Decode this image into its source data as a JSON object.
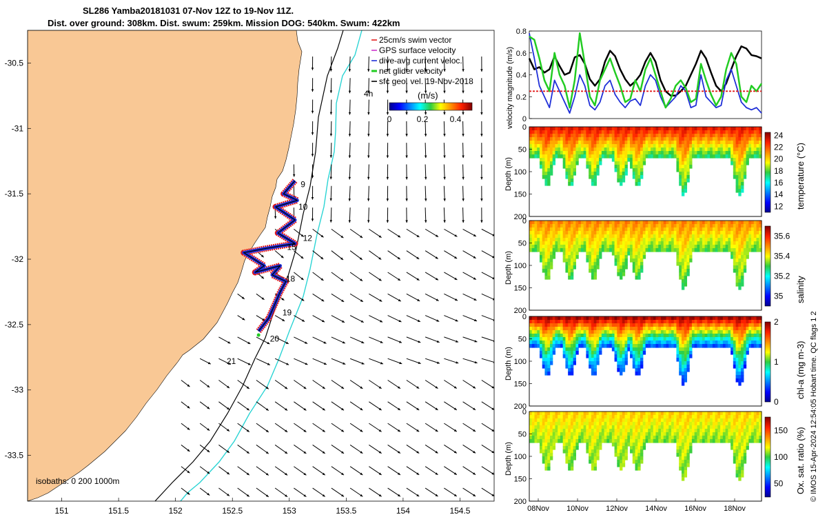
{
  "title": {
    "line1": "SL286 Yamba20181031 07-Nov 12Z to 19-Nov 11Z.",
    "line2": "Dist. over ground: 308km. Dist. swum: 259km. Mission DOG: 540km. Swum: 422km"
  },
  "credit": "© IMOS 15-Apr-2024 12:54:05 Hobart time. QC flags 1  2",
  "chart_data": [
    {
      "type": "map",
      "map": {
        "xticks": [
          "151",
          "151.5",
          "152",
          "152.5",
          "153",
          "153.5",
          "154",
          "154.5"
        ],
        "xlim": [
          150.7,
          154.8
        ],
        "yticks": [
          "-30.5",
          "-31",
          "-31.5",
          "-32",
          "-32.5",
          "-33",
          "-33.5"
        ],
        "ylim": [
          -33.85,
          -30.25
        ],
        "isobaths_label": "isobaths: 0   200  1000m",
        "elapsed_label": "4h",
        "day_labels": [
          {
            "text": "9",
            "lon": 153.1,
            "lat": -31.45
          },
          {
            "text": "10",
            "lon": 153.08,
            "lat": -31.62
          },
          {
            "text": "12",
            "lon": 153.12,
            "lat": -31.86
          },
          {
            "text": "15",
            "lon": 152.98,
            "lat": -31.93
          },
          {
            "text": "18",
            "lon": 152.97,
            "lat": -32.17
          },
          {
            "text": "19",
            "lon": 152.94,
            "lat": -32.43
          },
          {
            "text": "20",
            "lon": 152.83,
            "lat": -32.63
          },
          {
            "text": "21",
            "lon": 152.45,
            "lat": -32.8
          }
        ],
        "legend": [
          "25cm/s swim vector",
          "GPS surface velocity",
          "dive-avg current veloc.",
          "net glider velocity",
          "sfc geo. vel. 19-Nov-2018"
        ],
        "legend_colors": [
          "#e21a1a",
          "#cc33cc",
          "#1f2fd8",
          "#22cc22",
          "#000000"
        ],
        "colorbar": {
          "label": "(m/s)",
          "ticks": [
            "0",
            "0.2",
            "0.4"
          ],
          "range": [
            0,
            0.5
          ]
        }
      }
    },
    {
      "type": "line",
      "ylabel": "velocity magnitude (m/s)",
      "yticks": [
        "0",
        "0.2",
        "0.4",
        "0.6",
        "0.8"
      ],
      "ylim": [
        0,
        0.8
      ],
      "xlim": [
        0,
        12
      ],
      "series": [
        {
          "color": "#000000",
          "values": [
            0.55,
            0.45,
            0.47,
            0.42,
            0.45,
            0.57,
            0.48,
            0.4,
            0.42,
            0.56,
            0.58,
            0.5,
            0.36,
            0.3,
            0.36,
            0.52,
            0.62,
            0.57,
            0.45,
            0.36,
            0.3,
            0.34,
            0.4,
            0.52,
            0.6,
            0.52,
            0.35,
            0.25,
            0.21,
            0.21,
            0.25,
            0.3,
            0.4,
            0.5,
            0.62,
            0.55,
            0.42,
            0.3,
            0.25,
            0.32,
            0.45,
            0.57,
            0.66,
            0.64,
            0.58,
            0.57,
            0.55
          ]
        },
        {
          "color": "#1f2fd8",
          "values": [
            0.78,
            0.55,
            0.3,
            0.2,
            0.1,
            0.35,
            0.25,
            0.15,
            0.05,
            0.2,
            0.4,
            0.3,
            0.12,
            0.08,
            0.15,
            0.3,
            0.35,
            0.22,
            0.15,
            0.1,
            0.16,
            0.18,
            0.12,
            0.3,
            0.4,
            0.35,
            0.2,
            0.1,
            0.15,
            0.2,
            0.3,
            0.25,
            0.1,
            0.12,
            0.4,
            0.2,
            0.15,
            0.1,
            0.12,
            0.35,
            0.45,
            0.3,
            0.15,
            0.1,
            0.08,
            0.1,
            0.05
          ]
        },
        {
          "color": "#22cc22",
          "values": [
            0.75,
            0.72,
            0.55,
            0.35,
            0.25,
            0.6,
            0.4,
            0.3,
            0.1,
            0.35,
            0.78,
            0.5,
            0.2,
            0.12,
            0.35,
            0.45,
            0.55,
            0.42,
            0.3,
            0.15,
            0.18,
            0.35,
            0.25,
            0.45,
            0.55,
            0.4,
            0.25,
            0.1,
            0.18,
            0.3,
            0.35,
            0.28,
            0.15,
            0.18,
            0.5,
            0.35,
            0.22,
            0.12,
            0.2,
            0.45,
            0.6,
            0.5,
            0.2,
            0.15,
            0.3,
            0.25,
            0.32
          ]
        },
        {
          "color": "#e21a1a",
          "values": [
            0.25,
            0.25,
            0.25,
            0.25,
            0.25,
            0.25,
            0.25,
            0.25,
            0.25,
            0.25,
            0.25,
            0.25,
            0.25,
            0.25,
            0.25,
            0.25,
            0.25,
            0.25,
            0.25,
            0.25,
            0.25,
            0.25,
            0.25,
            0.25,
            0.25,
            0.25,
            0.25,
            0.25,
            0.25,
            0.25,
            0.25,
            0.25,
            0.25,
            0.25,
            0.25,
            0.25,
            0.25,
            0.25,
            0.25,
            0.25,
            0.25,
            0.25,
            0.25,
            0.25,
            0.25,
            0.25,
            0.25
          ]
        }
      ]
    },
    {
      "type": "heatmap",
      "ylabel": "Depth (m)",
      "yticks": [
        "0",
        "50",
        "100",
        "150",
        "200"
      ],
      "ylim": [
        200,
        0
      ],
      "colorbar_label": "temperature (°C)",
      "colorbar_ticks": [
        "12",
        "14",
        "16",
        "18",
        "20",
        "22",
        "24"
      ],
      "colorbar_range": [
        11,
        24.5
      ],
      "surface_value": 23,
      "deep_value": 17
    },
    {
      "type": "heatmap",
      "ylabel": "Depth (m)",
      "yticks": [
        "0",
        "50",
        "100",
        "150",
        "200"
      ],
      "ylim": [
        200,
        0
      ],
      "colorbar_label": "salinity",
      "colorbar_ticks": [
        "35",
        "35.2",
        "35.4",
        "35.6"
      ],
      "colorbar_range": [
        34.9,
        35.7
      ],
      "surface_value": 35.5,
      "deep_value": 35.3
    },
    {
      "type": "heatmap",
      "ylabel": "Depth (m)",
      "yticks": [
        "0",
        "50",
        "100",
        "150",
        "200"
      ],
      "ylim": [
        200,
        0
      ],
      "colorbar_label": "chl-a (mg m-3)",
      "colorbar_ticks": [
        "0",
        "1",
        "2"
      ],
      "colorbar_range": [
        0,
        2
      ],
      "surface_value": 1.9,
      "deep_value": 0.3
    },
    {
      "type": "heatmap",
      "ylabel": "Depth (m)",
      "yticks": [
        "0",
        "50",
        "100",
        "150",
        "200"
      ],
      "ylim": [
        200,
        0
      ],
      "colorbar_label": "Ox. sat. ratio (%)",
      "colorbar_ticks": [
        "50",
        "100",
        "150"
      ],
      "colorbar_range": [
        25,
        175
      ],
      "surface_value": 125,
      "deep_value": 105,
      "xticks": [
        "08Nov",
        "10Nov",
        "12Nov",
        "14Nov",
        "16Nov",
        "18Nov"
      ]
    }
  ],
  "colors": {
    "land": "#f9c895",
    "isobath_200": "#2ad4d4",
    "isobath_1000": "#000000"
  }
}
